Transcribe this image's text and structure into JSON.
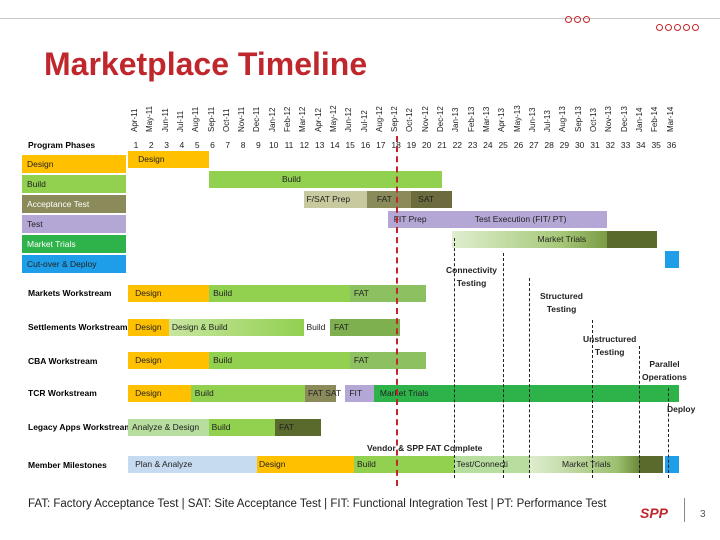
{
  "title": "Marketplace Timeline",
  "months": [
    "Apr-11",
    "May-11",
    "Jun-11",
    "Jul-11",
    "Aug-11",
    "Sep-11",
    "Oct-11",
    "Nov-11",
    "Dec-11",
    "Jan-12",
    "Feb-12",
    "Mar-12",
    "Apr-12",
    "May-12",
    "Jun-12",
    "Jul-12",
    "Aug-12",
    "Sep-12",
    "Oct-12",
    "Nov-12",
    "Dec-12",
    "Jan-13",
    "Feb-13",
    "Mar-13",
    "Apr-13",
    "May-13",
    "Jun-13",
    "Jul-13",
    "Aug-13",
    "Sep-13",
    "Oct-13",
    "Nov-13",
    "Dec-13",
    "Jan-14",
    "Feb-14",
    "Mar-14"
  ],
  "numbers": [
    "1",
    "2",
    "3",
    "4",
    "5",
    "6",
    "7",
    "8",
    "9",
    "10",
    "11",
    "12",
    "13",
    "14",
    "15",
    "16",
    "17",
    "18",
    "19",
    "20",
    "21",
    "22",
    "23",
    "24",
    "25",
    "26",
    "27",
    "28",
    "29",
    "30",
    "31",
    "32",
    "33",
    "34",
    "35",
    "36"
  ],
  "phases_header": "Program Phases",
  "phase_rows": [
    {
      "label": "Design",
      "color": "#ffc000"
    },
    {
      "label": "Build",
      "color": "#92d050"
    },
    {
      "label": "Acceptance Test",
      "color": "#8a8a5a"
    },
    {
      "label": "Test",
      "color": "#b4a7d6"
    },
    {
      "label": "Market Trials",
      "color": "#2eb34a"
    },
    {
      "label": "Cut-over & Deploy",
      "color": "#1e9ee8"
    }
  ],
  "workstreams": [
    "Markets Workstream",
    "Settlements Workstream",
    "CBA Workstream",
    "TCR Workstream",
    "Legacy Apps Workstream",
    "Member Milestones"
  ],
  "bar_texts": {
    "p_design": "Design",
    "p_build": "Build",
    "p_fsat": "F/SAT Prep",
    "p_fat": "FAT",
    "p_sat": "SAT",
    "p_fitprep": "FIT Prep",
    "p_exec": "Test Execution (FIT/ PT)",
    "p_mt": "Market Trials",
    "m_design": "Design",
    "m_build": "Build",
    "m_fat": "FAT",
    "s_design": "Design",
    "s_db": "Design & Build",
    "s_build": "Build",
    "s_fat": "FAT",
    "c_design": "Design",
    "c_build": "Build",
    "c_fat": "FAT",
    "t_design": "Design",
    "t_build": "Build",
    "t_fatsat": "FAT SAT",
    "t_fit": "FIT",
    "t_mt": "Market Trials",
    "l_ad": "Analyze & Design",
    "l_build": "Build",
    "l_fat": "FAT",
    "mm_pa": "Plan & Analyze",
    "mm_design": "Design",
    "mm_build": "Build",
    "mm_test": "Test/Connecti",
    "mm_mt": "Market Trials"
  },
  "notes": {
    "connectivity": "Connectivity\nTesting",
    "structured": "Structured\nTesting",
    "unstructured": "Unstructured\nTesting",
    "parallel": "Parallel\nOperations",
    "deploy": "Deploy",
    "vendor": "Vendor & SPP FAT Complete"
  },
  "footer": "FAT: Factory Acceptance Test  |  SAT: Site Acceptance Test  |  FIT: Functional Integration Test  |  PT: Performance Test",
  "logo": "SPP",
  "page_number": "3",
  "colors": {
    "title": "#c0272d",
    "design": "#ffc000",
    "build": "#92d050",
    "accept": "#8a8a5a",
    "test": "#b4a7d6",
    "trials": "#2eb34a",
    "deploy": "#1e9ee8"
  }
}
